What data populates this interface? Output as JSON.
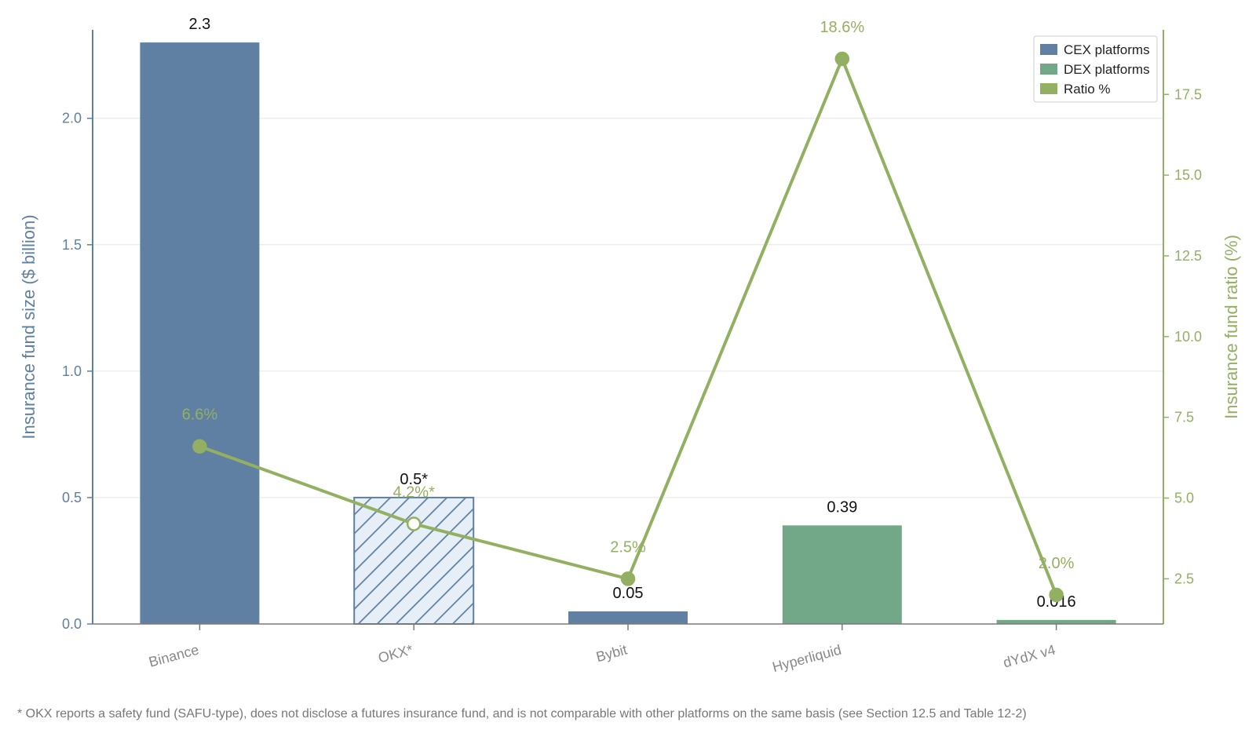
{
  "chart_data": {
    "type": "bar",
    "categories": [
      "Binance",
      "OKX*",
      "Bybit",
      "Hyperliquid",
      "dYdX v4"
    ],
    "series": [
      {
        "kind": "bar",
        "axis": "left",
        "values": [
          2.3,
          0.5,
          0.05,
          0.39,
          0.016
        ],
        "labels": [
          "2.3",
          "0.5*",
          "0.05",
          "0.39",
          "0.016"
        ],
        "groups": [
          "CEX platforms",
          "CEX platforms",
          "CEX platforms",
          "DEX platforms",
          "DEX platforms"
        ],
        "hatched": [
          false,
          true,
          false,
          false,
          false
        ]
      },
      {
        "kind": "line",
        "axis": "right",
        "name": "Ratio %",
        "values": [
          6.6,
          4.2,
          2.5,
          18.6,
          2.0
        ],
        "labels": [
          "6.6%",
          "4.2%*",
          "2.5%",
          "18.6%",
          "2.0%"
        ],
        "hollow": [
          false,
          true,
          false,
          false,
          false
        ]
      }
    ],
    "ylabel": "Insurance fund size ($ billion)",
    "y2label": "Insurance fund ratio (%)",
    "ylim": [
      0,
      2.35
    ],
    "y2lim": [
      1.1,
      19.5
    ],
    "yticks": [
      "0.0",
      "0.5",
      "1.0",
      "1.5",
      "2.0"
    ],
    "y2ticks": [
      "2.5",
      "5.0",
      "7.5",
      "10.0",
      "12.5",
      "15.0",
      "17.5"
    ],
    "grid": true,
    "legend": {
      "position": "top-right",
      "entries": [
        {
          "label": "CEX platforms",
          "color": "#5f80a2"
        },
        {
          "label": "DEX platforms",
          "color": "#72a788"
        },
        {
          "label": "Ratio %",
          "color": "#93b062"
        }
      ]
    }
  },
  "colors": {
    "cex": "#5f80a2",
    "dex": "#72a788",
    "ratio": "#93b062",
    "left_axis": "#5f80a2",
    "right_axis": "#93b062",
    "hatch_bg": "#e6eef7"
  },
  "footnote": "* OKX reports a safety fund (SAFU-type), does not disclose a futures insurance fund, and is not comparable with other platforms on the same basis (see Section 12.5 and Table 12-2)"
}
